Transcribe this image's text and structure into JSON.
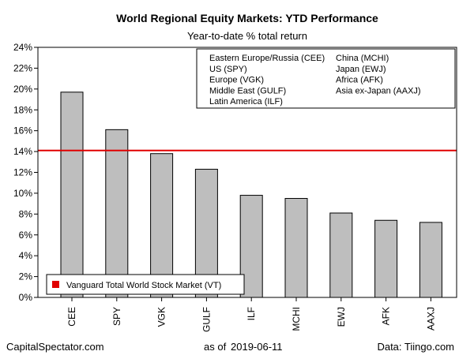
{
  "chart_data": {
    "type": "bar",
    "title": "World Regional Equity Markets: YTD Performance",
    "subtitle": "Year-to-date % total return",
    "categories": [
      "CEE",
      "SPY",
      "VGK",
      "GULF",
      "ILF",
      "MCHI",
      "EWJ",
      "AFK",
      "AAXJ"
    ],
    "values": [
      19.7,
      16.1,
      13.8,
      12.3,
      9.8,
      9.5,
      8.1,
      7.4,
      7.2
    ],
    "ylim": [
      0,
      24
    ],
    "yticks": [
      0,
      2,
      4,
      6,
      8,
      10,
      12,
      14,
      16,
      18,
      20,
      22,
      24
    ],
    "ytick_labels": [
      "0%",
      "2%",
      "4%",
      "6%",
      "8%",
      "10%",
      "12%",
      "14%",
      "16%",
      "18%",
      "20%",
      "22%",
      "24%"
    ],
    "reference_line": {
      "name": "Vanguard Total World Stock Market (VT)",
      "value": 14.1,
      "color": "#e00000"
    },
    "bar_color": "#bebebe",
    "legend": {
      "placement": "top-right",
      "col1": [
        "Eastern Europe/Russia (CEE)",
        "US (SPY)",
        "Europe (VGK)",
        "Middle East (GULF)",
        "Latin America (ILF)"
      ],
      "col2": [
        "China (MCHI)",
        "Japan (EWJ)",
        "Africa (AFK)",
        "Asia ex-Japan (AAXJ)"
      ]
    },
    "grid": false
  },
  "footer": {
    "left": "CapitalSpectator.com",
    "as_of_label": "as of",
    "as_of_date": "2019-06-11",
    "right": "Data: Tiingo.com"
  }
}
